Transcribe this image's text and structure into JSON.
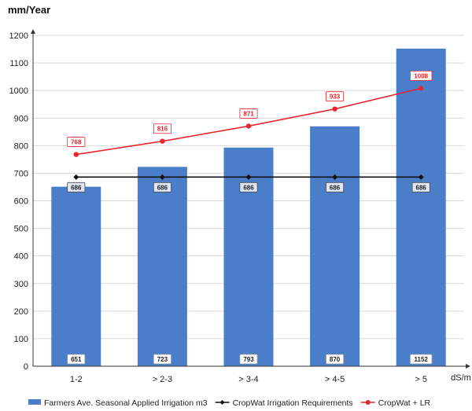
{
  "chart_data": {
    "type": "bar",
    "ylabel": "mm/Year",
    "xlabel": "dS/m",
    "ylim": [
      0,
      1200
    ],
    "yticks": [
      0,
      100,
      200,
      300,
      400,
      500,
      600,
      700,
      800,
      900,
      1000,
      1100,
      1200
    ],
    "categories": [
      "1-2",
      "> 2-3",
      "> 3-4",
      "> 4-5",
      "> 5"
    ],
    "series": [
      {
        "name": "Farmers Ave. Seasonal Applied Irrigation m3",
        "kind": "bar",
        "color": "#4a7ec8",
        "values": [
          651,
          723,
          793,
          870,
          1152
        ]
      },
      {
        "name": "CropWat Irrigation Requirements",
        "kind": "line",
        "color": "#111111",
        "values": [
          686,
          686,
          686,
          686,
          686
        ]
      },
      {
        "name": "CropWat + LR",
        "kind": "line",
        "color": "#e8262e",
        "values": [
          768,
          816,
          871,
          933,
          1008
        ]
      }
    ],
    "grid": "horizontal",
    "legend_position": "bottom"
  }
}
